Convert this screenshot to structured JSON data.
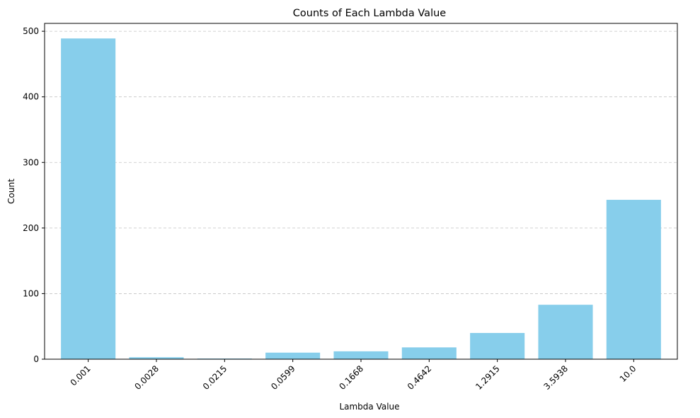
{
  "chart_data": {
    "type": "bar",
    "title": "Counts of Each Lambda Value",
    "xlabel": "Lambda Value",
    "ylabel": "Count",
    "categories": [
      "0.001",
      "0.0028",
      "0.0215",
      "0.0599",
      "0.1668",
      "0.4642",
      "1.2915",
      "3.5938",
      "10.0"
    ],
    "values": [
      489,
      3,
      1,
      10,
      12,
      18,
      40,
      83,
      243
    ],
    "ylim": [
      0,
      512
    ],
    "yticks": [
      0,
      100,
      200,
      300,
      400,
      500
    ],
    "grid": "y-dashed",
    "bar_color": "#87ceeb"
  }
}
